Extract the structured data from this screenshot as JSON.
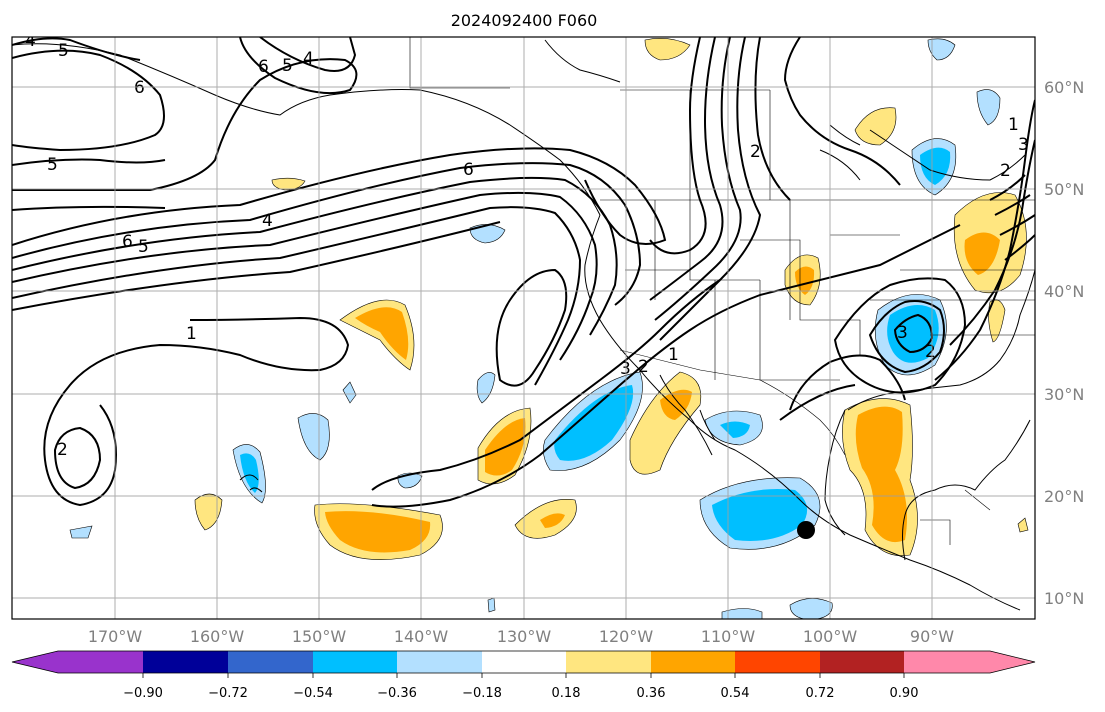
{
  "title": "2024092400 F060",
  "map": {
    "lon_labels": [
      "170°W",
      "160°W",
      "150°W",
      "140°W",
      "130°W",
      "120°W",
      "110°W",
      "100°W",
      "90°W"
    ],
    "lat_labels": [
      "60°N",
      "50°N",
      "40°N",
      "30°N",
      "20°N",
      "10°N"
    ],
    "grid": true,
    "marker": "black-dot"
  },
  "contour_labels": [
    "4",
    "5",
    "6",
    "5",
    "6",
    "4",
    "5",
    "6",
    "6",
    "5",
    "4",
    "1",
    "2",
    "2",
    "3",
    "1",
    "2",
    "3",
    "2",
    "1",
    "2",
    "3"
  ],
  "colorbar": {
    "labels": [
      "−0.90",
      "−0.72",
      "−0.54",
      "−0.36",
      "−0.18",
      "0.18",
      "0.36",
      "0.54",
      "0.72",
      "0.90"
    ],
    "colors": [
      "#9933cc",
      "#000099",
      "#3366cc",
      "#00bfff",
      "#b3e0ff",
      "#ffffff",
      "#ffe680",
      "#ffa500",
      "#ff4500",
      "#b22222",
      "#ff88aa"
    ],
    "extend": "both"
  }
}
